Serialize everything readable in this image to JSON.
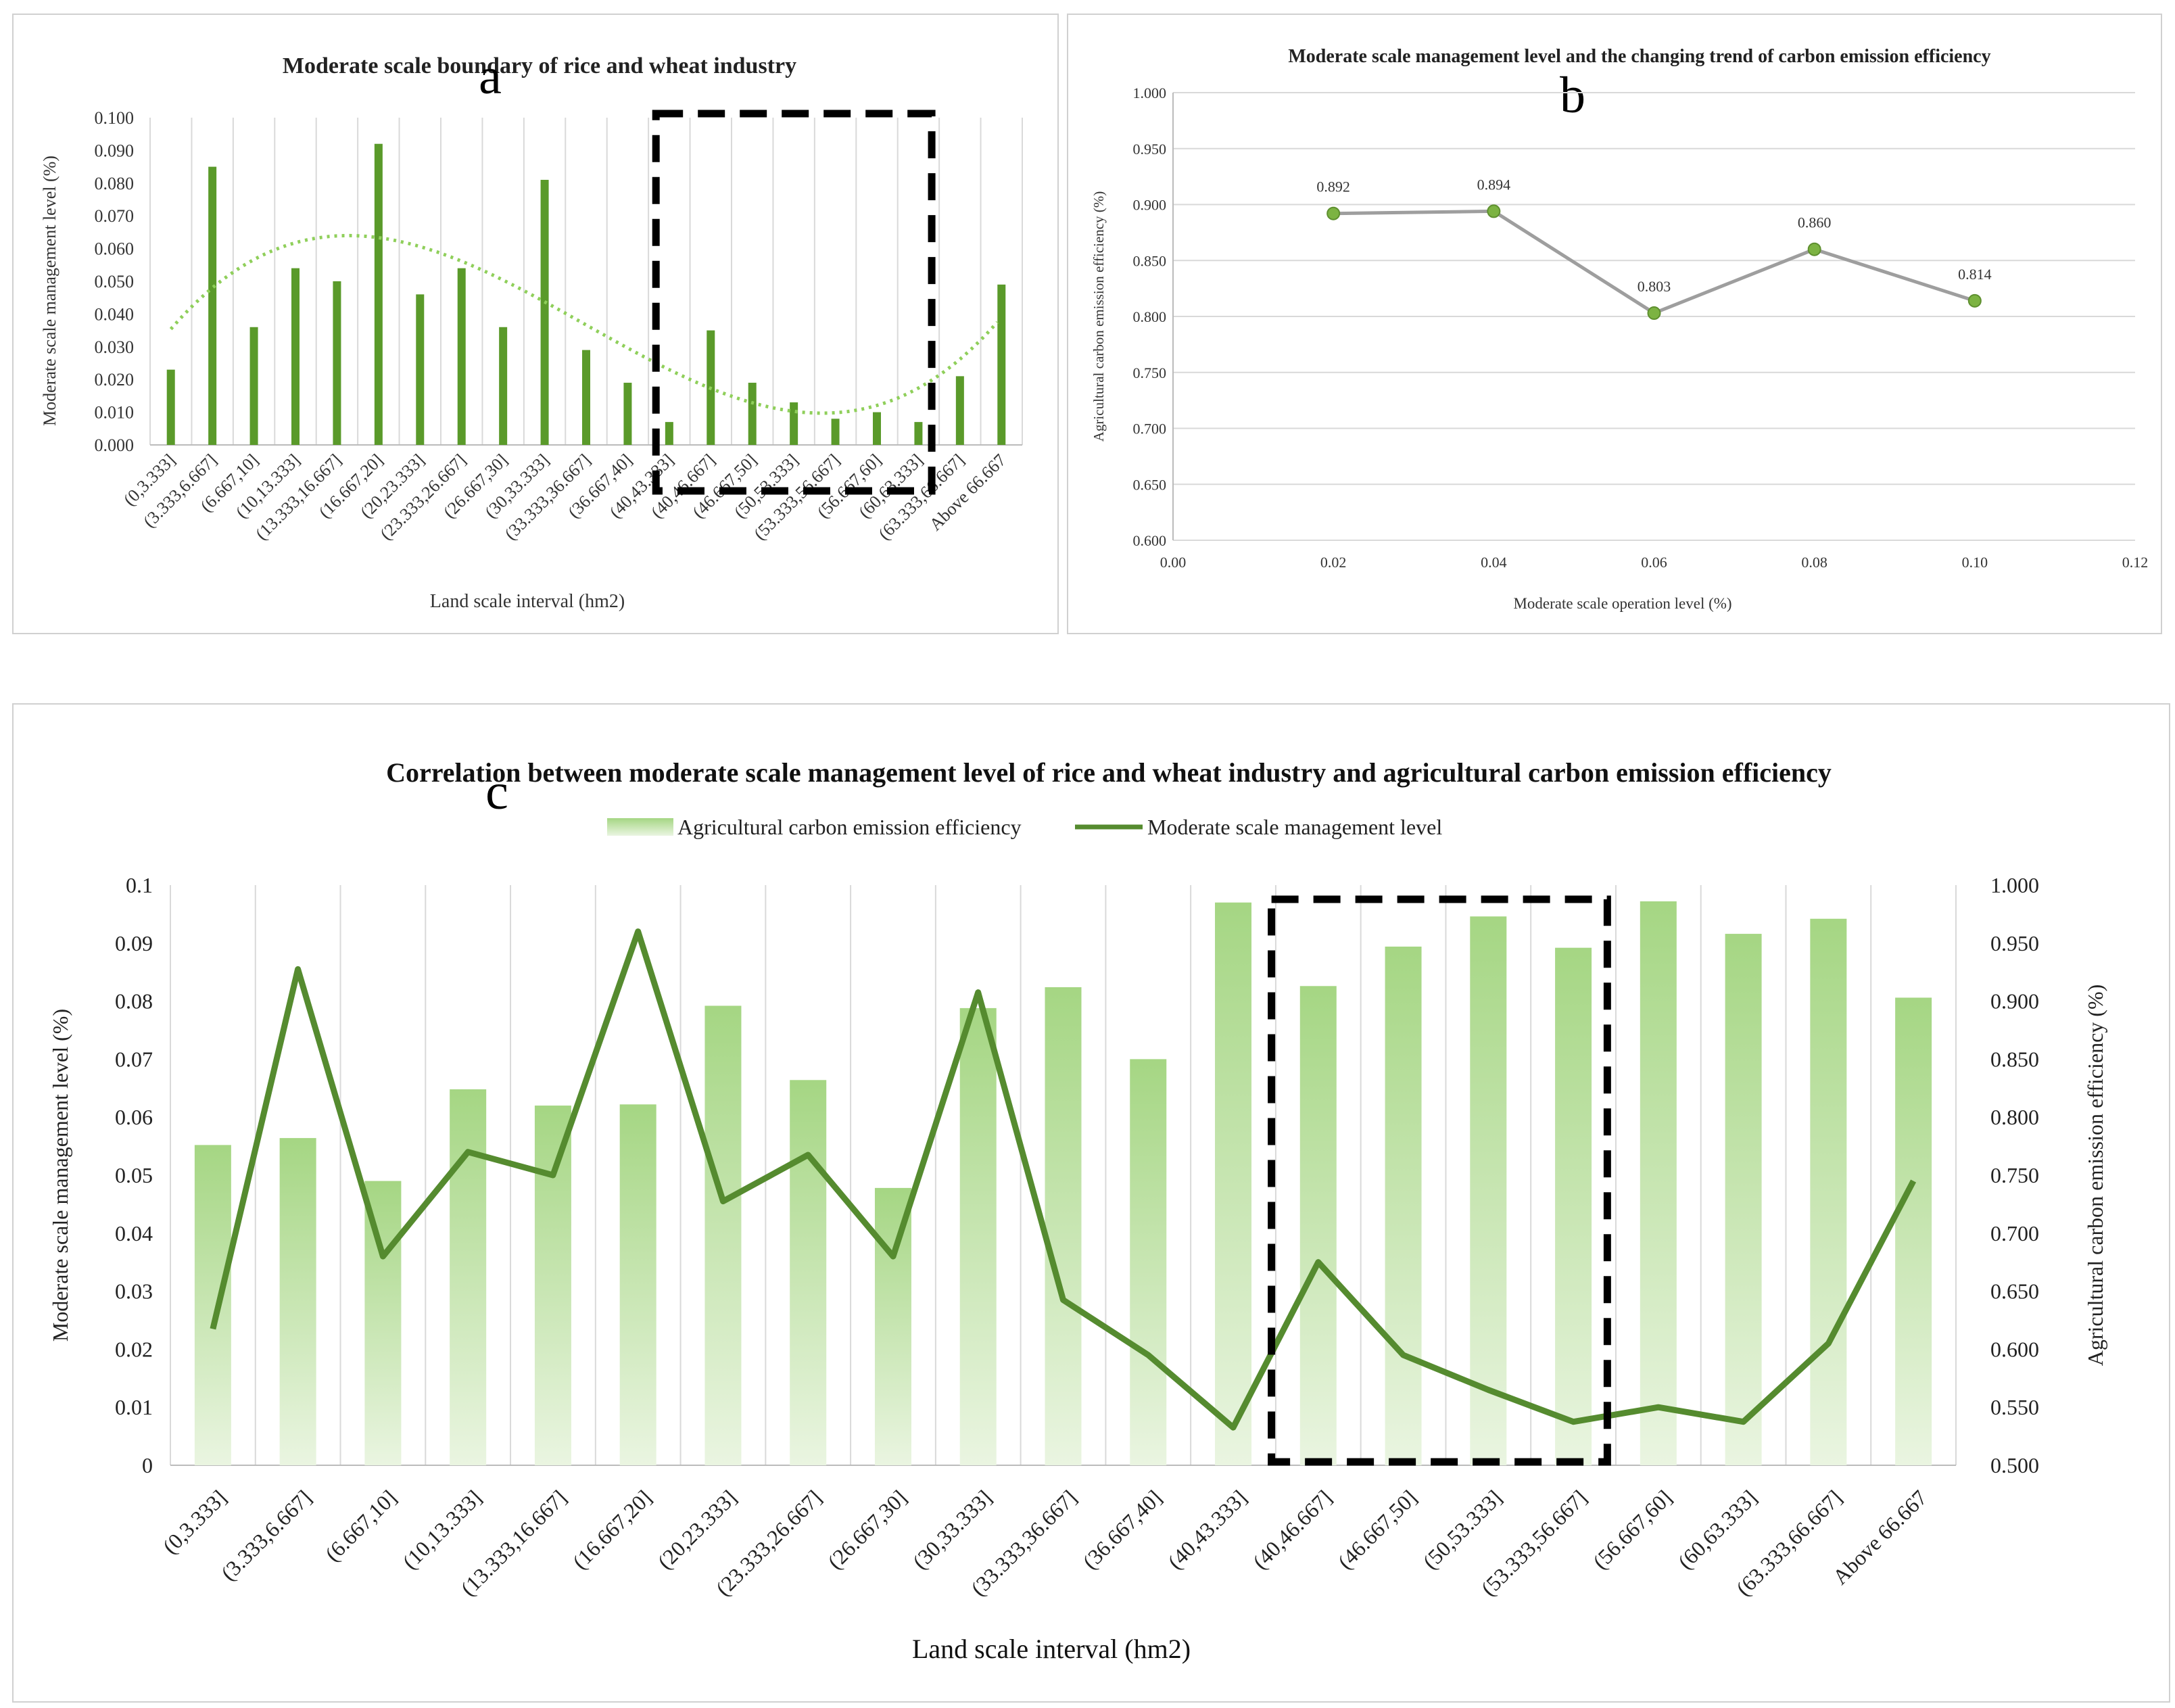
{
  "panel_letters": {
    "a": "a",
    "b": "b",
    "c": "c"
  },
  "colors": {
    "bar_green": "#5a9a2a",
    "trend_green": "#8fcf5a",
    "line_green": "#558b2f",
    "line_gray": "#9e9e9e",
    "marker_green": "#7cb342",
    "bar_fill_top": "#a5d683",
    "bar_fill_bottom": "#eaf5e1",
    "grid": "#d9d9d9",
    "box": "#000000"
  },
  "chart_data": [
    {
      "id": "a",
      "type": "bar",
      "title": "Moderate scale boundary of rice and wheat industry",
      "xlabel": "Land scale interval (hm2)",
      "ylabel": "Moderate scale management level (%)",
      "ylim": [
        0,
        0.1
      ],
      "yticks": [
        "0.000",
        "0.010",
        "0.020",
        "0.030",
        "0.040",
        "0.050",
        "0.060",
        "0.070",
        "0.080",
        "0.090",
        "0.100"
      ],
      "categories": [
        "(0,3.333]",
        "(3.333,6.667]",
        "(6.667,10]",
        "(10,13.333]",
        "(13.333,16.667]",
        "(16.667,20]",
        "(20,23.333]",
        "(23.333,26.667]",
        "(26.667,30]",
        "(30,33.333]",
        "(33.333,36.667]",
        "(36.667,40]",
        "(40,43.333]",
        "(40,46.667]",
        "(46.667,50]",
        "(50,53.333]",
        "(53.333,56.667]",
        "(56.667,60]",
        "(60,63.333]",
        "(63.333,66.667]",
        "Above 66.667"
      ],
      "values": [
        0.023,
        0.085,
        0.036,
        0.054,
        0.05,
        0.092,
        0.046,
        0.054,
        0.036,
        0.081,
        0.029,
        0.019,
        0.007,
        0.035,
        0.019,
        0.013,
        0.008,
        0.01,
        0.007,
        0.021,
        0.049
      ],
      "trendline": "polynomial (dotted)",
      "highlight_range": [
        "(40,43.333]",
        "(60,63.333]"
      ]
    },
    {
      "id": "b",
      "type": "line",
      "title": "Moderate scale management level and the changing trend of carbon emission efficiency",
      "xlabel": "Moderate scale operation level (%)",
      "ylabel": "Agricultural carbon emission efficiency (%)",
      "xlim": [
        0,
        0.12
      ],
      "ylim": [
        0.6,
        1.0
      ],
      "xticks": [
        "0.00",
        "0.02",
        "0.04",
        "0.06",
        "0.08",
        "0.10",
        "0.12"
      ],
      "yticks": [
        "0.600",
        "0.650",
        "0.700",
        "0.750",
        "0.800",
        "0.850",
        "0.900",
        "0.950",
        "1.000"
      ],
      "x": [
        0.02,
        0.04,
        0.06,
        0.08,
        0.1
      ],
      "y": [
        0.892,
        0.894,
        0.803,
        0.86,
        0.814
      ],
      "data_labels": [
        "0.892",
        "0.894",
        "0.803",
        "0.860",
        "0.814"
      ]
    },
    {
      "id": "c",
      "type": "bar",
      "title": "Correlation between moderate scale management level of rice and wheat industry and agricultural carbon emission efficiency",
      "xlabel": "Land scale interval (hm2)",
      "ylabel_left": "Moderate scale management level (%)",
      "ylabel_right": "Agricultural carbon emission efficiency (%)",
      "ylim_left": [
        0,
        0.1
      ],
      "ylim_right": [
        0.5,
        1.0
      ],
      "yticks_left": [
        "0",
        "0.01",
        "0.02",
        "0.03",
        "0.04",
        "0.05",
        "0.06",
        "0.07",
        "0.08",
        "0.09",
        "0.1"
      ],
      "yticks_right": [
        "0.500",
        "0.550",
        "0.600",
        "0.650",
        "0.700",
        "0.750",
        "0.800",
        "0.850",
        "0.900",
        "0.950",
        "1.000"
      ],
      "legend": [
        "Agricultural carbon emission efficiency",
        "Moderate scale management level"
      ],
      "categories": [
        "(0,3.333]",
        "(3.333,6.667]",
        "(6.667,10]",
        "(10,13.333]",
        "(13.333,16.667]",
        "(16.667,20]",
        "(20,23.333]",
        "(23.333,26.667]",
        "(26.667,30]",
        "(30,33.333]",
        "(33.333,36.667]",
        "(36.667,40]",
        "(40,43.333]",
        "(40,46.667]",
        "(46.667,50]",
        "(50,53.333]",
        "(53.333,56.667]",
        "(56.667,60]",
        "(60,63.333]",
        "(63.333,66.667]",
        "Above 66.667"
      ],
      "series": [
        {
          "name": "Agricultural carbon emission efficiency",
          "type": "bar",
          "axis": "right",
          "values": [
            0.776,
            0.782,
            0.745,
            0.824,
            0.81,
            0.811,
            0.896,
            0.832,
            0.739,
            0.894,
            0.912,
            0.85,
            0.985,
            0.913,
            0.947,
            0.973,
            0.946,
            0.986,
            0.958,
            0.971,
            0.903
          ]
        },
        {
          "name": "Moderate scale management level",
          "type": "line",
          "axis": "left",
          "values": [
            0.0235,
            0.0855,
            0.036,
            0.054,
            0.05,
            0.092,
            0.0455,
            0.0535,
            0.036,
            0.0815,
            0.0285,
            0.019,
            0.0065,
            0.035,
            0.019,
            0.013,
            0.0075,
            0.01,
            0.0075,
            0.021,
            0.049
          ]
        }
      ],
      "highlight_range": [
        "(40,46.667]",
        "(53.333,56.667]"
      ]
    }
  ]
}
